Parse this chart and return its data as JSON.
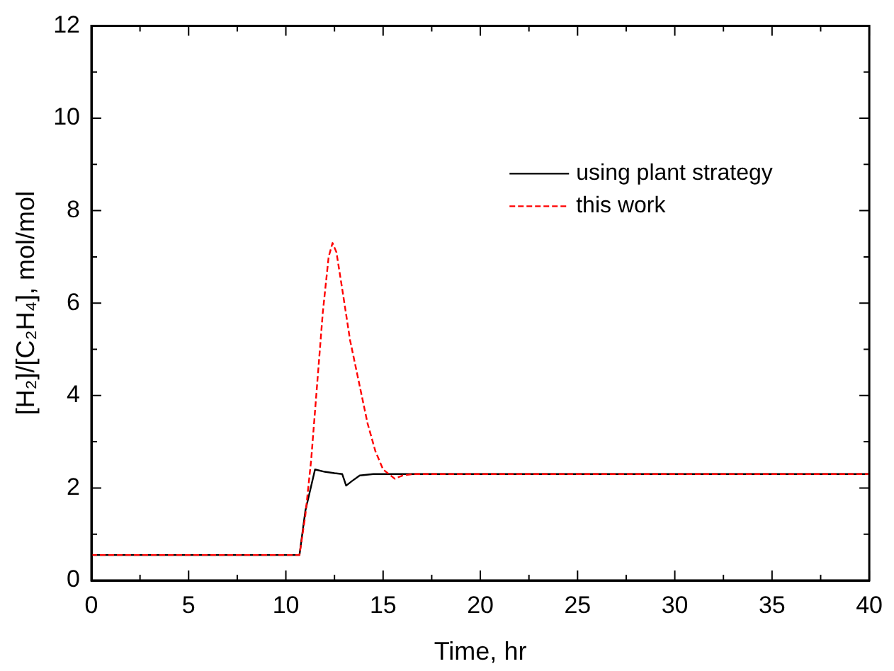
{
  "chart_data": {
    "type": "line",
    "xlabel": "Time, hr",
    "ylabel": "[H₂]/[C₂H₄], mol/mol",
    "xlim": [
      0,
      40
    ],
    "xticks": [
      0,
      {
        "value": 2.5,
        "label": null
      },
      5,
      {
        "value": 7.5,
        "label": null
      },
      10,
      {
        "value": 12.5,
        "label": null
      },
      15,
      {
        "value": 17.5,
        "label": null
      },
      20,
      {
        "value": 22.5,
        "label": null
      },
      25,
      {
        "value": 27.5,
        "label": null
      },
      30,
      {
        "value": 32.5,
        "label": null
      },
      35,
      {
        "value": 37.5,
        "label": null
      },
      40
    ],
    "ylim": [
      0,
      12
    ],
    "yticks": [
      0,
      {
        "value": 1,
        "label": null
      },
      2,
      {
        "value": 3,
        "label": null
      },
      4,
      {
        "value": 5,
        "label": null
      },
      6,
      {
        "value": 7,
        "label": null
      },
      8,
      {
        "value": 9,
        "label": null
      },
      10,
      {
        "value": 11,
        "label": null
      },
      12
    ],
    "grid": false,
    "legend": "top right",
    "marker": "none",
    "series": [
      {
        "name": "using plant strategy",
        "color": "#000000",
        "line_style": "solid",
        "x": [
          0,
          10.7,
          11.0,
          11.5,
          12.0,
          12.5,
          12.9,
          13.1,
          13.4,
          13.8,
          14.5,
          20,
          30,
          40
        ],
        "values": [
          0.55,
          0.55,
          1.5,
          2.4,
          2.35,
          2.32,
          2.3,
          2.05,
          2.15,
          2.27,
          2.3,
          2.3,
          2.3,
          2.3
        ]
      },
      {
        "name": "this work",
        "color": "#ff0000",
        "line_style": "dashed",
        "x": [
          0,
          10.7,
          11.0,
          11.3,
          11.6,
          11.9,
          12.2,
          12.4,
          12.6,
          12.9,
          13.3,
          13.8,
          14.2,
          14.6,
          15.0,
          15.3,
          15.6,
          16.0,
          16.5,
          20,
          30,
          40
        ],
        "values": [
          0.55,
          0.55,
          1.4,
          2.6,
          4.2,
          5.8,
          7.0,
          7.3,
          7.1,
          6.3,
          5.2,
          4.2,
          3.4,
          2.8,
          2.4,
          2.3,
          2.2,
          2.27,
          2.3,
          2.3,
          2.3,
          2.3
        ]
      }
    ]
  }
}
